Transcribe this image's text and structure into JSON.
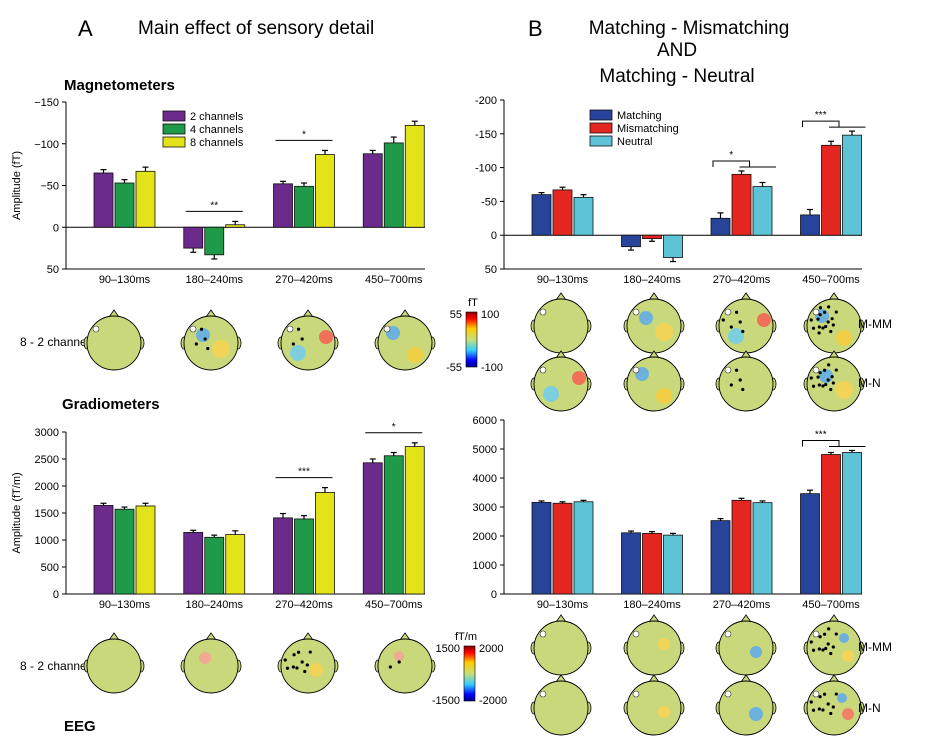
{
  "panel_a": {
    "letter": "A",
    "title": "Main effect of sensory detail",
    "row_label": "8 - 2 channels"
  },
  "panel_b": {
    "letter": "B",
    "title_lines": [
      "Matching - Mismatching",
      "AND",
      "Matching - Neutral"
    ],
    "topo_labels": [
      "M-MM",
      "M-N"
    ]
  },
  "sections": {
    "magnetometers": "Magnetometers",
    "gradiometers": "Gradiometers",
    "eeg": "EEG"
  },
  "colorbars": {
    "mag": {
      "unit": "fT",
      "left_top": "55",
      "left_bottom": "-55",
      "right_top": "100",
      "right_bottom": "-100"
    },
    "grad": {
      "unit": "fT/m",
      "left_top": "1500",
      "left_bottom": "-1500",
      "right_top": "2000",
      "right_bottom": "-2000"
    }
  },
  "colors": {
    "2 channels": "#6b2a8c",
    "4 channels": "#1e9a48",
    "8 channels": "#e3e31a",
    "Matching": "#27449a",
    "Mismatching": "#e3261f",
    "Neutral": "#5cc4d6",
    "head_field": "#c8d87a"
  },
  "chart_data": [
    {
      "id": "a-mag",
      "type": "bar",
      "ylabel": "Amplitude (fT)",
      "yreversed": true,
      "ylim": [
        50,
        -150
      ],
      "yticks": [
        50,
        0,
        -50,
        -100,
        -150
      ],
      "ytick_labels": [
        "50",
        "0",
        "−50",
        "−100",
        "−150"
      ],
      "categories": [
        "90–130ms",
        "180–240ms",
        "270–420ms",
        "450–700ms"
      ],
      "series": [
        {
          "name": "2 channels",
          "values": [
            -65,
            25,
            -52,
            -88
          ],
          "errors": [
            4,
            5,
            3,
            4
          ]
        },
        {
          "name": "4 channels",
          "values": [
            -53,
            33,
            -49,
            -101
          ],
          "errors": [
            4,
            5,
            4,
            7
          ]
        },
        {
          "name": "8 channels",
          "values": [
            -67,
            -3,
            -87,
            -122
          ],
          "errors": [
            5,
            4,
            5,
            5
          ]
        }
      ],
      "significance": [
        {
          "category": 1,
          "label": "**"
        },
        {
          "category": 2,
          "label": "*"
        }
      ]
    },
    {
      "id": "b-mag",
      "type": "bar",
      "yreversed": true,
      "ylim": [
        50,
        -200
      ],
      "yticks": [
        50,
        0,
        -50,
        -100,
        -150,
        -200
      ],
      "ytick_labels": [
        "50",
        "0",
        "-50",
        "-100",
        "-150",
        "-200"
      ],
      "categories": [
        "90–130ms",
        "180–240ms",
        "270–420ms",
        "450–700ms"
      ],
      "series": [
        {
          "name": "Matching",
          "values": [
            -60,
            17,
            -25,
            -30
          ],
          "errors": [
            3,
            5,
            8,
            8
          ]
        },
        {
          "name": "Mismatching",
          "values": [
            -67,
            5,
            -90,
            -133
          ],
          "errors": [
            4,
            4,
            5,
            6
          ]
        },
        {
          "name": "Neutral",
          "values": [
            -56,
            33,
            -72,
            -148
          ],
          "errors": [
            4,
            6,
            6,
            6
          ]
        }
      ],
      "significance": [
        {
          "category": 2,
          "label": "*"
        },
        {
          "category": 3,
          "label": "***"
        }
      ]
    },
    {
      "id": "a-grad",
      "type": "bar",
      "ylabel": "Amplitude (fT/m)",
      "ylim": [
        0,
        3000
      ],
      "yticks": [
        0,
        500,
        1000,
        1500,
        2000,
        2500,
        3000
      ],
      "ytick_labels": [
        "0",
        "500",
        "1000",
        "1500",
        "2000",
        "2500",
        "3000"
      ],
      "categories": [
        "90–130ms",
        "180–240ms",
        "270–420ms",
        "450–700ms"
      ],
      "series": [
        {
          "name": "2 channels",
          "values": [
            1640,
            1140,
            1410,
            2430
          ],
          "errors": [
            40,
            40,
            80,
            70
          ]
        },
        {
          "name": "4 channels",
          "values": [
            1570,
            1050,
            1390,
            2560
          ],
          "errors": [
            40,
            40,
            60,
            60
          ]
        },
        {
          "name": "8 channels",
          "values": [
            1630,
            1100,
            1880,
            2730
          ],
          "errors": [
            50,
            70,
            90,
            70
          ]
        }
      ],
      "significance": [
        {
          "category": 2,
          "label": "***"
        },
        {
          "category": 3,
          "label": "*"
        }
      ]
    },
    {
      "id": "b-grad",
      "type": "bar",
      "ylim": [
        0,
        6000
      ],
      "yticks": [
        0,
        1000,
        2000,
        3000,
        4000,
        5000,
        6000
      ],
      "ytick_labels": [
        "0",
        "1000",
        "2000",
        "3000",
        "4000",
        "5000",
        "6000"
      ],
      "categories": [
        "90–130ms",
        "180–240ms",
        "270–420ms",
        "450–700ms"
      ],
      "series": [
        {
          "name": "Matching",
          "values": [
            3160,
            2110,
            2530,
            3460
          ],
          "errors": [
            50,
            60,
            70,
            120
          ]
        },
        {
          "name": "Mismatching",
          "values": [
            3130,
            2090,
            3230,
            4810
          ],
          "errors": [
            50,
            60,
            70,
            70
          ]
        },
        {
          "name": "Neutral",
          "values": [
            3180,
            2030,
            3150,
            4880
          ],
          "errors": [
            50,
            60,
            60,
            70
          ]
        }
      ],
      "significance": [
        {
          "category": 3,
          "label": "***"
        }
      ]
    }
  ]
}
